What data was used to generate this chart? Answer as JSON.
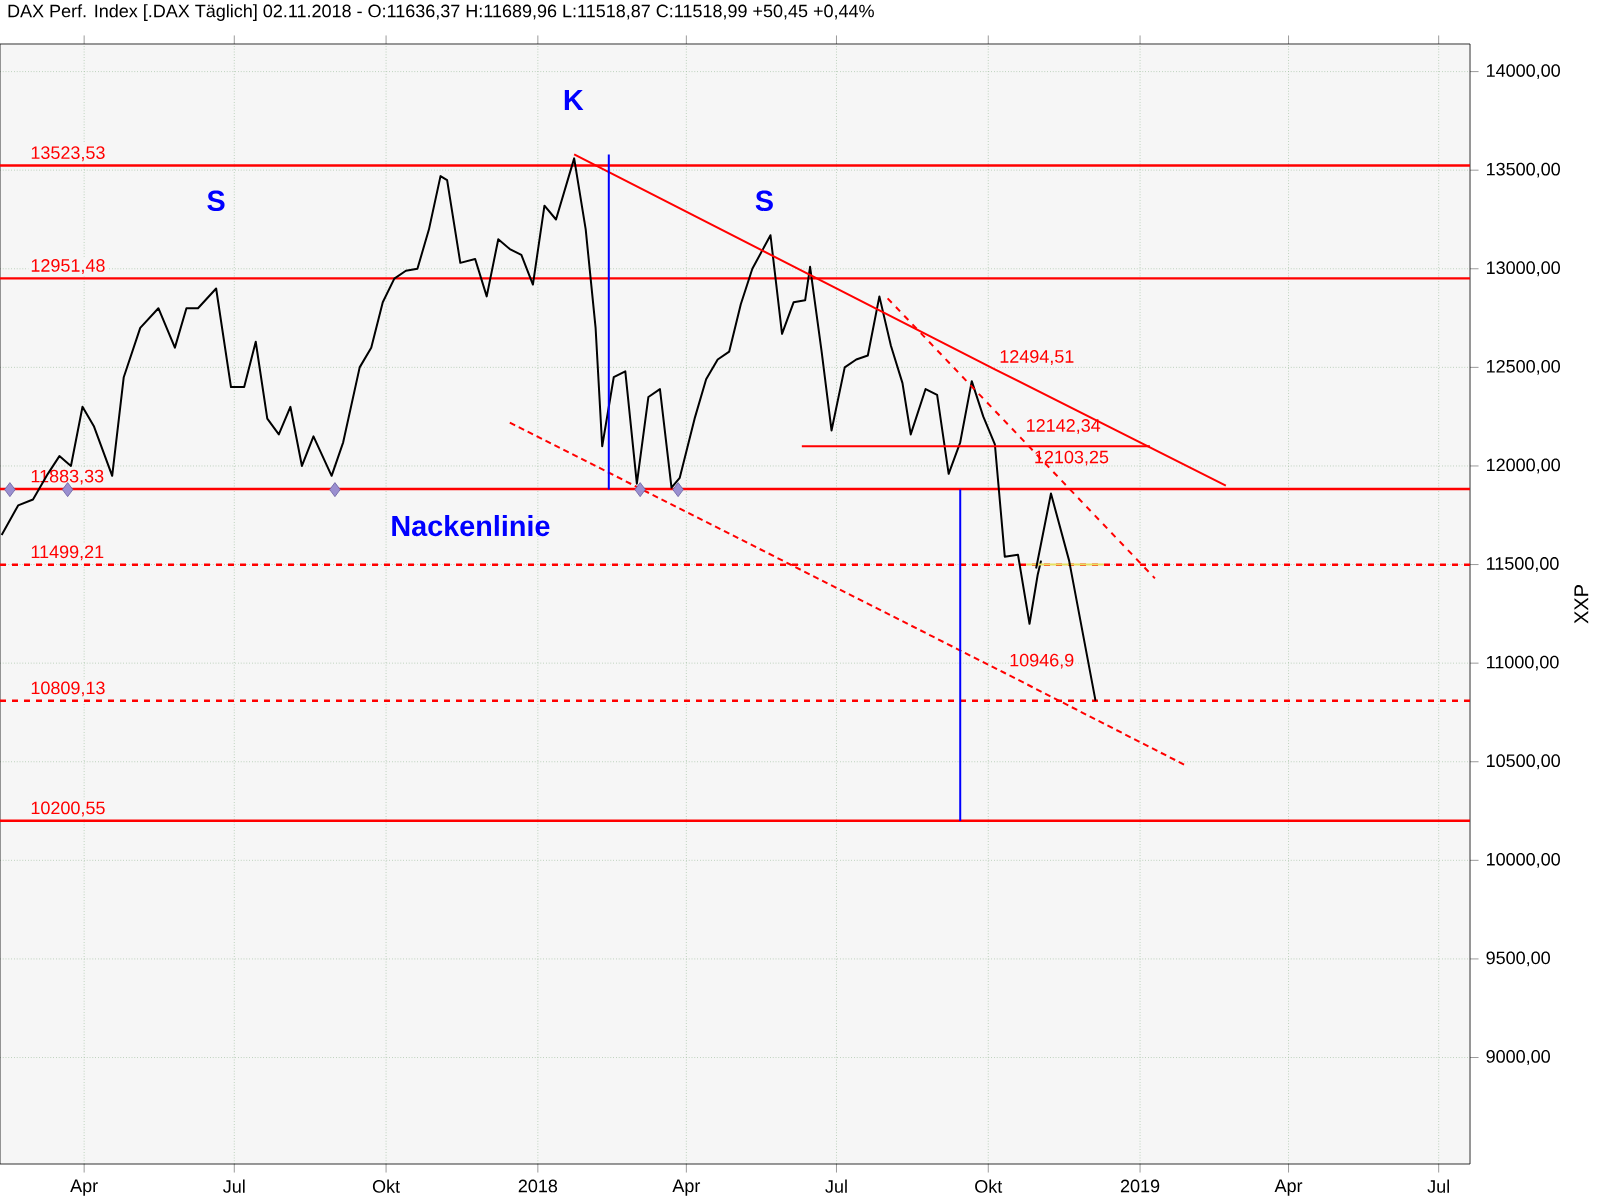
{
  "chart_data": {
    "type": "line",
    "title": "DAX Perf. Index [.DAX  Täglich] 02.11.2018 - O:11636,37 H:11689,96 L:11518,87 C:11518,99 +50,45 +0,44%",
    "ylabel": "XXP",
    "xlim": [
      "2017-02-09",
      "2019-07-20"
    ],
    "ylim": [
      8460,
      14140
    ],
    "xticks": [
      {
        "value": "2017-04-01",
        "label": "Apr"
      },
      {
        "value": "2017-07-01",
        "label": "Jul"
      },
      {
        "value": "2017-10-01",
        "label": "Okt"
      },
      {
        "value": "2018-01-01",
        "label": "2018"
      },
      {
        "value": "2018-04-01",
        "label": "Apr"
      },
      {
        "value": "2018-07-01",
        "label": "Jul"
      },
      {
        "value": "2018-10-01",
        "label": "Okt"
      },
      {
        "value": "2019-01-01",
        "label": "2019"
      },
      {
        "value": "2019-04-01",
        "label": "Apr"
      },
      {
        "value": "2019-07-01",
        "label": "Jul"
      }
    ],
    "yticks": [
      {
        "value": 9000,
        "label": "9000,00"
      },
      {
        "value": 9500,
        "label": "9500,00"
      },
      {
        "value": 10000,
        "label": "10000,00"
      },
      {
        "value": 10500,
        "label": "10500,00"
      },
      {
        "value": 11000,
        "label": "11000,00"
      },
      {
        "value": 11500,
        "label": "11500,00"
      },
      {
        "value": 12000,
        "label": "12000,00"
      },
      {
        "value": 12500,
        "label": "12500,00"
      },
      {
        "value": 13000,
        "label": "13000,00"
      },
      {
        "value": 13500,
        "label": "13500,00"
      },
      {
        "value": 14000,
        "label": "14000,00"
      }
    ],
    "grid": true,
    "ref_lines": [
      {
        "axis": "y",
        "value": 13523.53,
        "label": "13523,53",
        "color": "#ff0000",
        "line_style": "solid"
      },
      {
        "axis": "y",
        "value": 12951.48,
        "label": "12951,48",
        "color": "#ff0000",
        "line_style": "solid"
      },
      {
        "axis": "y",
        "value": 11883.33,
        "label": "11883,33",
        "color": "#ff0000",
        "line_style": "solid"
      },
      {
        "axis": "y",
        "value": 11499.21,
        "label": "11499,21",
        "color": "#ff0000",
        "line_style": "dashed"
      },
      {
        "axis": "y",
        "value": 10809.13,
        "label": "10809,13",
        "color": "#ff0000",
        "line_style": "dashed"
      },
      {
        "axis": "y",
        "value": 10200.55,
        "label": "10200,55",
        "color": "#ff0000",
        "line_style": "solid"
      }
    ],
    "annotations": [
      "S",
      "K",
      "S",
      "Nackenlinie"
    ],
    "series": [
      {
        "color": "#000000",
        "x": [
          "2017-02-10",
          "2017-02-20",
          "2017-03-01",
          "2017-03-10",
          "2017-03-17",
          "2017-03-24",
          "2017-03-31",
          "2017-04-07",
          "2017-04-18",
          "2017-04-25",
          "2017-05-05",
          "2017-05-16",
          "2017-05-26",
          "2017-06-02",
          "2017-06-09",
          "2017-06-20",
          "2017-06-29",
          "2017-07-07",
          "2017-07-14",
          "2017-07-21",
          "2017-07-28",
          "2017-08-04",
          "2017-08-11",
          "2017-08-18",
          "2017-08-29",
          "2017-09-05",
          "2017-09-15",
          "2017-09-22",
          "2017-09-29",
          "2017-10-06",
          "2017-10-13",
          "2017-10-20",
          "2017-10-27",
          "2017-11-03",
          "2017-11-07",
          "2017-11-15",
          "2017-11-24",
          "2017-12-01",
          "2017-12-08",
          "2017-12-15",
          "2017-12-22",
          "2017-12-29",
          "2018-01-05",
          "2018-01-12",
          "2018-01-23",
          "2018-01-30",
          "2018-02-05",
          "2018-02-09",
          "2018-02-16",
          "2018-02-23",
          "2018-03-02",
          "2018-03-09",
          "2018-03-16",
          "2018-03-23",
          "2018-03-28",
          "2018-04-06",
          "2018-04-13",
          "2018-04-20",
          "2018-04-27",
          "2018-05-04",
          "2018-05-11",
          "2018-05-22",
          "2018-05-29",
          "2018-06-05",
          "2018-06-12",
          "2018-06-15",
          "2018-06-22",
          "2018-06-28",
          "2018-07-06",
          "2018-07-13",
          "2018-07-20",
          "2018-07-27",
          "2018-08-03",
          "2018-08-10",
          "2018-08-15",
          "2018-08-24",
          "2018-08-31",
          "2018-09-07",
          "2018-09-14",
          "2018-09-21",
          "2018-09-28",
          "2018-10-05",
          "2018-10-11",
          "2018-10-19",
          "2018-10-26",
          "2018-10-31",
          "2018-11-02"
        ],
        "values": [
          11650,
          11800,
          11830,
          11960,
          12050,
          12000,
          12300,
          12200,
          11950,
          12450,
          12700,
          12800,
          12600,
          12800,
          12800,
          12900,
          12400,
          12400,
          12630,
          12240,
          12160,
          12300,
          12000,
          12150,
          11950,
          12120,
          12500,
          12600,
          12830,
          12950,
          12990,
          13000,
          13200,
          13470,
          13450,
          13030,
          13050,
          12860,
          13150,
          13100,
          13070,
          12920,
          13320,
          13250,
          13560,
          13200,
          12700,
          12100,
          12450,
          12480,
          11910,
          12350,
          12390,
          11890,
          11940,
          12240,
          12440,
          12540,
          12580,
          12820,
          13000,
          13170,
          12670,
          12830,
          12840,
          13010,
          12580,
          12180,
          12500,
          12540,
          12560,
          12860,
          12610,
          12420,
          12160,
          12390,
          12360,
          11960,
          12120,
          12430,
          12250,
          12110,
          11540,
          11550,
          11200,
          11450,
          11520
        ]
      },
      {
        "type": "line",
        "name": "12494,51",
        "color": "#ff0000",
        "line_style": "solid",
        "x": [
          "2018-01-23",
          "2018-10-05",
          "2019-02-22"
        ],
        "values": [
          13580,
          12490,
          11900
        ]
      },
      {
        "type": "line",
        "name": "12142,34",
        "color": "#ff0000",
        "line_style": "dashed",
        "x": [
          "2018-08-01",
          "2018-10-21",
          "2019-01-10"
        ],
        "values": [
          12850,
          12140,
          11430
        ]
      },
      {
        "type": "line",
        "name": "12103,25",
        "color": "#ff0000",
        "line_style": "solid",
        "x": [
          "2018-06-10",
          "2018-10-26",
          "2019-01-07"
        ],
        "values": [
          12100,
          12100,
          12100
        ]
      },
      {
        "type": "line",
        "name": "10946,9",
        "color": "#ff0000",
        "line_style": "dotted",
        "x": [
          "2017-12-15",
          "2018-10-11",
          "2019-01-29"
        ],
        "values": [
          12220,
          10950,
          10480
        ]
      },
      {
        "type": "line",
        "color": "#0000ff",
        "line_style": "solid",
        "x": [
          "2018-02-13",
          "2018-02-13"
        ],
        "values": [
          13580,
          11880
        ]
      },
      {
        "type": "line",
        "color": "#0000ff",
        "line_style": "solid",
        "x": [
          "2018-09-14",
          "2018-09-14"
        ],
        "values": [
          11880,
          10200
        ]
      },
      {
        "type": "line",
        "color": "#e8e060",
        "line_style": "solid",
        "x": [
          "2018-10-24",
          "2018-12-10"
        ],
        "values": [
          11500,
          11500
        ]
      },
      {
        "type": "line",
        "color": "#000000",
        "line_style": "solid",
        "x": [
          "2018-10-30",
          "2018-11-08",
          "2018-11-19",
          "2018-12-05"
        ],
        "values": [
          11480,
          11860,
          11520,
          10810
        ]
      },
      {
        "type": "scatter",
        "color": "#9a8fd0",
        "marker": "diamond",
        "x": [
          "2017-02-15",
          "2017-03-22",
          "2017-08-31",
          "2018-03-04",
          "2018-03-27"
        ],
        "values": [
          11880,
          11880,
          11880,
          11880,
          11880
        ]
      }
    ]
  }
}
